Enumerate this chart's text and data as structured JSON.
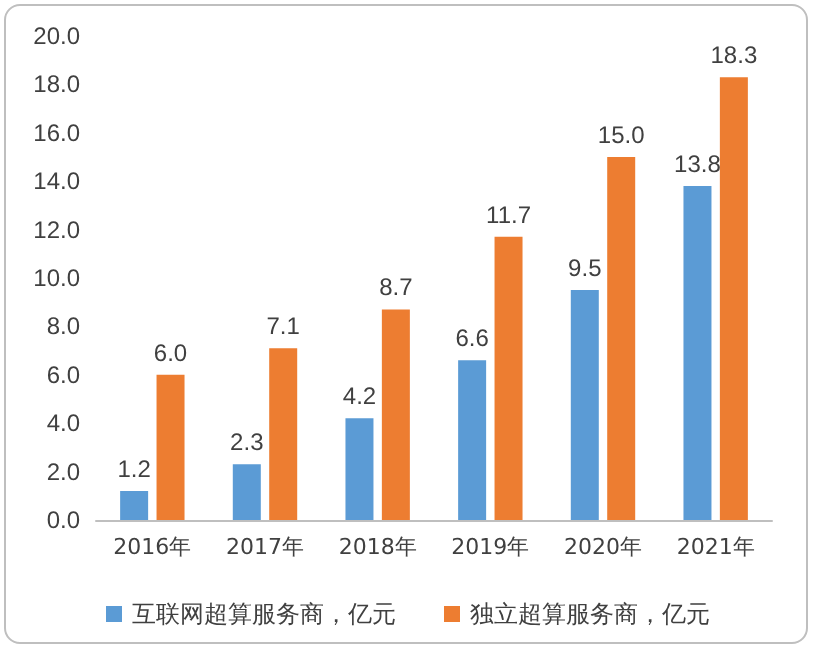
{
  "chart_data": {
    "type": "bar",
    "categories": [
      "2016年",
      "2017年",
      "2018年",
      "2019年",
      "2020年",
      "2021年"
    ],
    "series": [
      {
        "name": "互联网超算服务商，亿元",
        "color": "#5b9bd5",
        "values": [
          1.2,
          2.3,
          4.2,
          6.6,
          9.5,
          13.8
        ],
        "value_labels": [
          "1.2",
          "2.3",
          "4.2",
          "6.6",
          "9.5",
          "13.8"
        ]
      },
      {
        "name": "独立超算服务商，亿元",
        "color": "#ed7d31",
        "values": [
          6.0,
          7.1,
          8.7,
          11.7,
          15.0,
          18.3
        ],
        "value_labels": [
          "6.0",
          "7.1",
          "8.7",
          "11.7",
          "15.0",
          "18.3"
        ]
      }
    ],
    "ylim": [
      0,
      20
    ],
    "yticks": [
      {
        "value": 0,
        "label": "0.0"
      },
      {
        "value": 2,
        "label": "2.0"
      },
      {
        "value": 4,
        "label": "4.0"
      },
      {
        "value": 6,
        "label": "6.0"
      },
      {
        "value": 8,
        "label": "8.0"
      },
      {
        "value": 10,
        "label": "10.0"
      },
      {
        "value": 12,
        "label": "12.0"
      },
      {
        "value": 14,
        "label": "14.0"
      },
      {
        "value": 16,
        "label": "16.0"
      },
      {
        "value": 18,
        "label": "18.0"
      },
      {
        "value": 20,
        "label": "20.0"
      }
    ],
    "grid": false,
    "legend": "bottom"
  }
}
